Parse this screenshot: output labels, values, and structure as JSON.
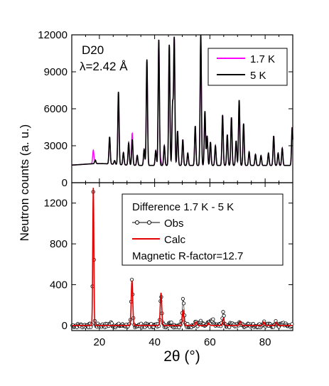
{
  "colors": {
    "series_1p7K": "#ff00ff",
    "series_5K": "#000000",
    "calc": "#e00000",
    "obs": "#000000",
    "axes": "#000000"
  },
  "chart_data": [
    {
      "type": "line",
      "panel": "top",
      "annotation_instrument": "D20",
      "annotation_wavelength": "λ=2.42 Å",
      "xlim": [
        10,
        90
      ],
      "ylim": [
        0,
        12000
      ],
      "y_ticks": [
        "0",
        "3000",
        "6000",
        "9000",
        "12000"
      ],
      "legend_placement": "top-right",
      "legend": [
        "1.7 K",
        "5 K"
      ],
      "peaks_5K": [
        {
          "x": 18.5,
          "y": 1700
        },
        {
          "x": 23.7,
          "y": 3600
        },
        {
          "x": 25.5,
          "y": 1700
        },
        {
          "x": 26.9,
          "y": 7300
        },
        {
          "x": 28.7,
          "y": 2400
        },
        {
          "x": 30.6,
          "y": 3200
        },
        {
          "x": 31.9,
          "y": 3500
        },
        {
          "x": 33.7,
          "y": 2200
        },
        {
          "x": 36.2,
          "y": 2700
        },
        {
          "x": 37.2,
          "y": 10000
        },
        {
          "x": 40.4,
          "y": 2600
        },
        {
          "x": 41.5,
          "y": 11600
        },
        {
          "x": 43.5,
          "y": 3000
        },
        {
          "x": 45.3,
          "y": 11200
        },
        {
          "x": 46.5,
          "y": 6300
        },
        {
          "x": 47.1,
          "y": 11700
        },
        {
          "x": 48.3,
          "y": 4200
        },
        {
          "x": 50.2,
          "y": 3500
        },
        {
          "x": 52.0,
          "y": 2400
        },
        {
          "x": 54.7,
          "y": 4600
        },
        {
          "x": 56.7,
          "y": 12000
        },
        {
          "x": 58.2,
          "y": 5800
        },
        {
          "x": 59.0,
          "y": 3800
        },
        {
          "x": 60.2,
          "y": 3300
        },
        {
          "x": 62.0,
          "y": 3000
        },
        {
          "x": 64.6,
          "y": 5500
        },
        {
          "x": 66.3,
          "y": 3900
        },
        {
          "x": 67.8,
          "y": 5300
        },
        {
          "x": 69.5,
          "y": 3400
        },
        {
          "x": 70.6,
          "y": 6700
        },
        {
          "x": 72.2,
          "y": 4800
        },
        {
          "x": 74.2,
          "y": 2500
        },
        {
          "x": 76.5,
          "y": 2300
        },
        {
          "x": 78.5,
          "y": 2200
        },
        {
          "x": 81.2,
          "y": 2400
        },
        {
          "x": 83.1,
          "y": 3800
        },
        {
          "x": 84.7,
          "y": 2400
        },
        {
          "x": 86.2,
          "y": 2800
        },
        {
          "x": 89.8,
          "y": 4500
        }
      ],
      "magnetic_peaks_1p7K": [
        {
          "x": 17.8,
          "y": 2500
        },
        {
          "x": 31.8,
          "y": 1950
        },
        {
          "x": 42.2,
          "y": 1850
        }
      ],
      "background_counts": 1400
    },
    {
      "type": "line",
      "panel": "bottom",
      "xlabel": "2θ (°)",
      "ylabel": "Neutron counts (a. u.)",
      "xlim": [
        10,
        90
      ],
      "ylim": [
        -50,
        1400
      ],
      "x_ticks": [
        "20",
        "40",
        "60",
        "80"
      ],
      "y_ticks": [
        "0",
        "400",
        "800",
        "1200"
      ],
      "legend_placement": "top-right",
      "legend_title": "Difference 1.7 K - 5 K",
      "legend": [
        "Obs",
        "Calc"
      ],
      "r_factor_text": "Magnetic R-factor=12.7",
      "calc_peaks": [
        {
          "x": 17.8,
          "y": 1350
        },
        {
          "x": 31.8,
          "y": 440
        },
        {
          "x": 42.3,
          "y": 320
        },
        {
          "x": 50.3,
          "y": 150
        },
        {
          "x": 55.0,
          "y": 35
        },
        {
          "x": 59.5,
          "y": 25
        },
        {
          "x": 64.9,
          "y": 70
        },
        {
          "x": 71.0,
          "y": 40
        },
        {
          "x": 79.5,
          "y": 35
        },
        {
          "x": 84.0,
          "y": 30
        }
      ],
      "obs_extra": [
        {
          "x": 50.4,
          "y": 190
        },
        {
          "x": 60.8,
          "y": 110
        },
        {
          "x": 64.7,
          "y": 90
        },
        {
          "x": 24.1,
          "y": 40
        },
        {
          "x": 45.5,
          "y": 70
        },
        {
          "x": 56.5,
          "y": 60
        },
        {
          "x": 68.0,
          "y": 50
        },
        {
          "x": 74.0,
          "y": 40
        },
        {
          "x": 86.5,
          "y": 45
        }
      ]
    }
  ]
}
